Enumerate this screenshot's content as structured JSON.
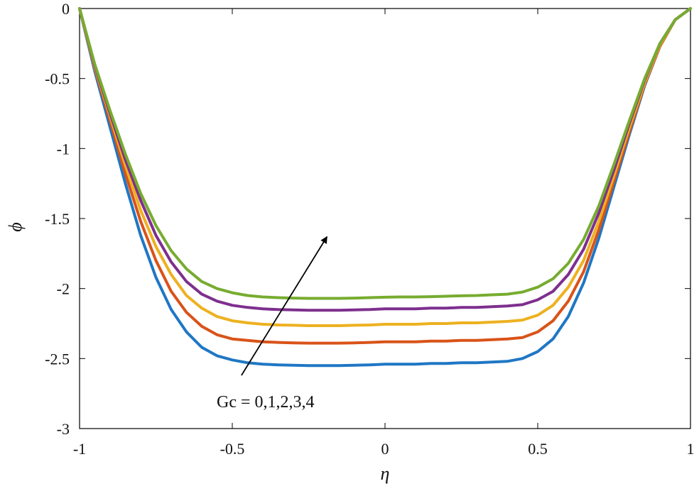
{
  "chart_data": {
    "type": "line",
    "xlabel": "η",
    "ylabel": "ϕ",
    "xlim": [
      -1,
      1
    ],
    "ylim": [
      -3,
      0
    ],
    "x_ticks": [
      -1,
      -0.5,
      0,
      0.5,
      1
    ],
    "y_ticks": [
      0,
      -0.5,
      -1,
      -1.5,
      -2,
      -2.5,
      -3
    ],
    "x_tick_labels": [
      "-1",
      "-0.5",
      "0",
      "0.5",
      "1"
    ],
    "y_tick_labels": [
      "0",
      "-0.5",
      "-1",
      "-1.5",
      "-2",
      "-2.5",
      "-3"
    ],
    "grid": false,
    "annotation": {
      "text": "Gc = 0,1,2,3,4",
      "arrow_from": [
        -0.47,
        -2.62
      ],
      "arrow_to": [
        -0.19,
        -1.63
      ]
    },
    "x": [
      -1,
      -0.95,
      -0.9,
      -0.85,
      -0.8,
      -0.75,
      -0.7,
      -0.65,
      -0.6,
      -0.55,
      -0.5,
      -0.45,
      -0.4,
      -0.35,
      -0.3,
      -0.25,
      -0.2,
      -0.15,
      -0.1,
      -0.05,
      0,
      0.05,
      0.1,
      0.15,
      0.2,
      0.25,
      0.3,
      0.35,
      0.4,
      0.45,
      0.5,
      0.55,
      0.6,
      0.65,
      0.7,
      0.75,
      0.8,
      0.85,
      0.9,
      0.95,
      1
    ],
    "series": [
      {
        "color": "#1f77c4",
        "values": [
          0,
          -0.45,
          -0.85,
          -1.25,
          -1.62,
          -1.92,
          -2.15,
          -2.31,
          -2.42,
          -2.48,
          -2.51,
          -2.53,
          -2.54,
          -2.545,
          -2.548,
          -2.55,
          -2.55,
          -2.55,
          -2.548,
          -2.545,
          -2.54,
          -2.54,
          -2.54,
          -2.535,
          -2.535,
          -2.53,
          -2.53,
          -2.525,
          -2.52,
          -2.5,
          -2.45,
          -2.36,
          -2.2,
          -1.96,
          -1.64,
          -1.27,
          -0.9,
          -0.55,
          -0.27,
          -0.08,
          0
        ]
      },
      {
        "color": "#d95319",
        "values": [
          0,
          -0.43,
          -0.8,
          -1.18,
          -1.52,
          -1.8,
          -2.02,
          -2.17,
          -2.27,
          -2.33,
          -2.36,
          -2.37,
          -2.38,
          -2.385,
          -2.388,
          -2.39,
          -2.39,
          -2.39,
          -2.388,
          -2.385,
          -2.38,
          -2.38,
          -2.38,
          -2.375,
          -2.375,
          -2.37,
          -2.37,
          -2.365,
          -2.36,
          -2.35,
          -2.31,
          -2.23,
          -2.09,
          -1.88,
          -1.58,
          -1.23,
          -0.88,
          -0.54,
          -0.27,
          -0.08,
          0
        ]
      },
      {
        "color": "#edb120",
        "values": [
          0,
          -0.42,
          -0.77,
          -1.12,
          -1.44,
          -1.7,
          -1.9,
          -2.05,
          -2.14,
          -2.2,
          -2.23,
          -2.245,
          -2.255,
          -2.26,
          -2.262,
          -2.265,
          -2.265,
          -2.265,
          -2.262,
          -2.26,
          -2.255,
          -2.255,
          -2.255,
          -2.25,
          -2.25,
          -2.245,
          -2.245,
          -2.24,
          -2.235,
          -2.225,
          -2.19,
          -2.12,
          -1.99,
          -1.8,
          -1.52,
          -1.19,
          -0.85,
          -0.53,
          -0.26,
          -0.08,
          0
        ]
      },
      {
        "color": "#7e2f8e",
        "values": [
          0,
          -0.41,
          -0.75,
          -1.08,
          -1.37,
          -1.62,
          -1.81,
          -1.95,
          -2.04,
          -2.09,
          -2.12,
          -2.135,
          -2.145,
          -2.15,
          -2.152,
          -2.155,
          -2.155,
          -2.155,
          -2.152,
          -2.15,
          -2.145,
          -2.145,
          -2.145,
          -2.14,
          -2.14,
          -2.135,
          -2.135,
          -2.13,
          -2.125,
          -2.115,
          -2.08,
          -2.02,
          -1.9,
          -1.72,
          -1.46,
          -1.15,
          -0.82,
          -0.51,
          -0.25,
          -0.08,
          0
        ]
      },
      {
        "color": "#77ac30",
        "values": [
          0,
          -0.4,
          -0.73,
          -1.04,
          -1.32,
          -1.55,
          -1.73,
          -1.86,
          -1.95,
          -2.0,
          -2.03,
          -2.05,
          -2.06,
          -2.065,
          -2.068,
          -2.07,
          -2.07,
          -2.07,
          -2.068,
          -2.065,
          -2.062,
          -2.06,
          -2.06,
          -2.058,
          -2.055,
          -2.052,
          -2.05,
          -2.045,
          -2.04,
          -2.025,
          -1.99,
          -1.93,
          -1.82,
          -1.65,
          -1.41,
          -1.11,
          -0.8,
          -0.5,
          -0.25,
          -0.08,
          0
        ]
      }
    ]
  }
}
